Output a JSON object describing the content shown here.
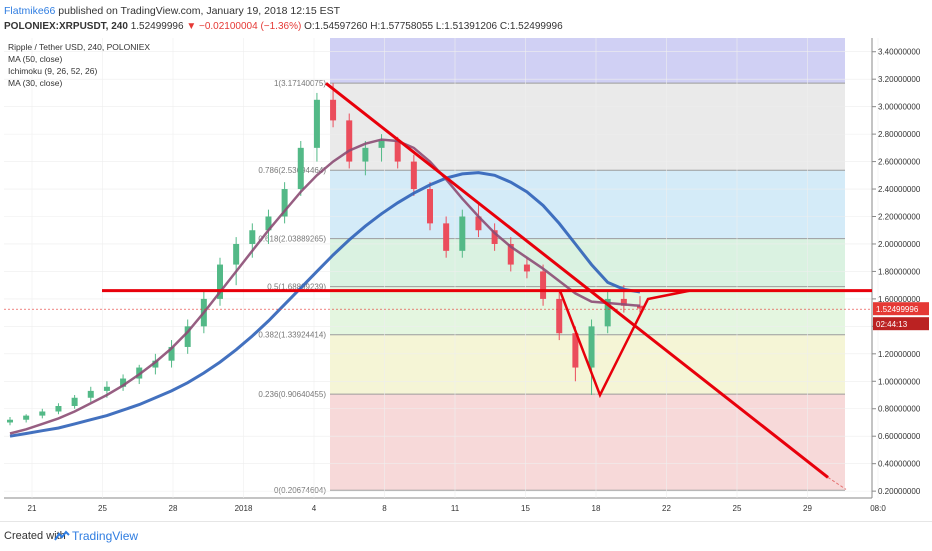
{
  "header": {
    "author": "Flatmike66",
    "published": "published on TradingView.com, January 19, 2018 12:15 EST",
    "symbol": "POLONIEX:XRPUSDT, 240",
    "last": "1.52499996",
    "change": "▼ −0.02100004 (−1.36%)",
    "open": "O:1.54597260",
    "high": "H:1.57758055",
    "low": "L:1.51391206",
    "close": "C:1.52499996"
  },
  "legend": [
    "Ripple / Tether USD, 240, POLONIEX",
    "MA (50, close)",
    "Ichimoku (9, 26, 52, 26)",
    "MA (30, close)"
  ],
  "footer": {
    "created": "Created with",
    "brand": "TradingView"
  },
  "colors": {
    "up": "#53b987",
    "down": "#eb4d5c",
    "ma50": "#2f62b8",
    "ma30": "#8c4d74",
    "tenkan": "#2196f3",
    "kijun": "#b71c1c",
    "lagging": "#6aa84f",
    "span_a": "#7fc780",
    "span_b": "#c77f7f",
    "annotation": "#e8000b",
    "price_label": "#e53935"
  },
  "chart_data": {
    "type": "candlestick",
    "ylim": [
      0.15,
      3.5
    ],
    "y_ticks": [
      "3.40000000",
      "3.20000000",
      "3.00000000",
      "2.80000000",
      "2.60000000",
      "2.40000000",
      "2.20000000",
      "2.00000000",
      "1.80000000",
      "1.60000000",
      "1.40000000",
      "1.20000000",
      "1.00000000",
      "0.80000000",
      "0.60000000",
      "0.40000000",
      "0.20000000"
    ],
    "x_ticks": [
      "21",
      "25",
      "28",
      "2018",
      "4",
      "8",
      "11",
      "15",
      "18",
      "22",
      "25",
      "29",
      "08:0"
    ],
    "last_price_label": "1.52499996",
    "countdown_label": "02:44:13",
    "fibonacci": [
      {
        "label": "1(3.17140075)",
        "value": 3.1714,
        "fill": "#c8c8f2"
      },
      {
        "label": "0.786(2.53694464)",
        "value": 2.5369,
        "fill": "#e6e6e6"
      },
      {
        "label": "0.618(2.03889265)",
        "value": 2.0389,
        "fill": "#cde8f7"
      },
      {
        "label": "0.5(1.68899239)",
        "value": 1.689,
        "fill": "#d3f0dc"
      },
      {
        "label": "0.382(1.33924414)",
        "value": 1.3392,
        "fill": "#dff4da"
      },
      {
        "label": "0.236(0.90640455)",
        "value": 0.9064,
        "fill": "#f3f3cf"
      },
      {
        "label": "0(0.20674604)",
        "value": 0.2067,
        "fill": "#f6d2d2"
      }
    ],
    "candles_ohlc": [
      [
        0.7,
        0.74,
        0.68,
        0.72
      ],
      [
        0.72,
        0.76,
        0.7,
        0.75
      ],
      [
        0.75,
        0.8,
        0.73,
        0.78
      ],
      [
        0.78,
        0.84,
        0.76,
        0.82
      ],
      [
        0.82,
        0.9,
        0.8,
        0.88
      ],
      [
        0.88,
        0.96,
        0.85,
        0.93
      ],
      [
        0.93,
        1.0,
        0.88,
        0.96
      ],
      [
        0.96,
        1.05,
        0.93,
        1.02
      ],
      [
        1.02,
        1.12,
        0.98,
        1.1
      ],
      [
        1.1,
        1.2,
        1.05,
        1.15
      ],
      [
        1.15,
        1.3,
        1.1,
        1.25
      ],
      [
        1.25,
        1.45,
        1.2,
        1.4
      ],
      [
        1.4,
        1.65,
        1.35,
        1.6
      ],
      [
        1.6,
        1.9,
        1.55,
        1.85
      ],
      [
        1.85,
        2.05,
        1.7,
        2.0
      ],
      [
        2.0,
        2.15,
        1.9,
        2.1
      ],
      [
        2.1,
        2.25,
        2.0,
        2.2
      ],
      [
        2.2,
        2.45,
        2.15,
        2.4
      ],
      [
        2.4,
        2.75,
        2.35,
        2.7
      ],
      [
        2.7,
        3.1,
        2.6,
        3.05
      ],
      [
        3.05,
        3.17,
        2.85,
        2.9
      ],
      [
        2.9,
        2.95,
        2.55,
        2.6
      ],
      [
        2.6,
        2.75,
        2.5,
        2.7
      ],
      [
        2.7,
        2.8,
        2.6,
        2.75
      ],
      [
        2.75,
        2.78,
        2.55,
        2.6
      ],
      [
        2.6,
        2.65,
        2.35,
        2.4
      ],
      [
        2.4,
        2.45,
        2.1,
        2.15
      ],
      [
        2.15,
        2.2,
        1.9,
        1.95
      ],
      [
        1.95,
        2.25,
        1.9,
        2.2
      ],
      [
        2.2,
        2.3,
        2.05,
        2.1
      ],
      [
        2.1,
        2.15,
        1.95,
        2.0
      ],
      [
        2.0,
        2.05,
        1.8,
        1.85
      ],
      [
        1.85,
        1.9,
        1.75,
        1.8
      ],
      [
        1.8,
        1.85,
        1.55,
        1.6
      ],
      [
        1.6,
        1.65,
        1.3,
        1.35
      ],
      [
        1.35,
        1.4,
        1.0,
        1.1
      ],
      [
        1.1,
        1.45,
        0.9,
        1.4
      ],
      [
        1.4,
        1.65,
        1.35,
        1.6
      ],
      [
        1.6,
        1.7,
        1.5,
        1.55
      ],
      [
        1.55,
        1.62,
        1.5,
        1.53
      ]
    ],
    "series": [
      {
        "name": "MA (50, close)",
        "values": [
          0.6,
          0.62,
          0.64,
          0.66,
          0.69,
          0.72,
          0.75,
          0.79,
          0.83,
          0.88,
          0.93,
          0.99,
          1.06,
          1.14,
          1.23,
          1.33,
          1.44,
          1.56,
          1.68,
          1.8,
          1.92,
          2.03,
          2.13,
          2.22,
          2.3,
          2.37,
          2.43,
          2.48,
          2.51,
          2.52,
          2.5,
          2.45,
          2.38,
          2.28,
          2.15,
          2.0,
          1.85,
          1.72,
          1.67,
          1.65
        ]
      },
      {
        "name": "MA (30, close)",
        "values": [
          0.62,
          0.65,
          0.69,
          0.73,
          0.78,
          0.84,
          0.9,
          0.97,
          1.05,
          1.14,
          1.24,
          1.36,
          1.5,
          1.65,
          1.8,
          1.95,
          2.1,
          2.24,
          2.38,
          2.5,
          2.6,
          2.68,
          2.73,
          2.76,
          2.75,
          2.7,
          2.6,
          2.47,
          2.33,
          2.2,
          2.08,
          1.98,
          1.9,
          1.82,
          1.73,
          1.64,
          1.58,
          1.57,
          1.56,
          1.55
        ]
      }
    ],
    "annotations": {
      "horizontal_line": 1.66,
      "trend_from": 3.17,
      "trend_to": 0.3,
      "projection_low": 0.9,
      "projection_high": 1.66
    }
  }
}
